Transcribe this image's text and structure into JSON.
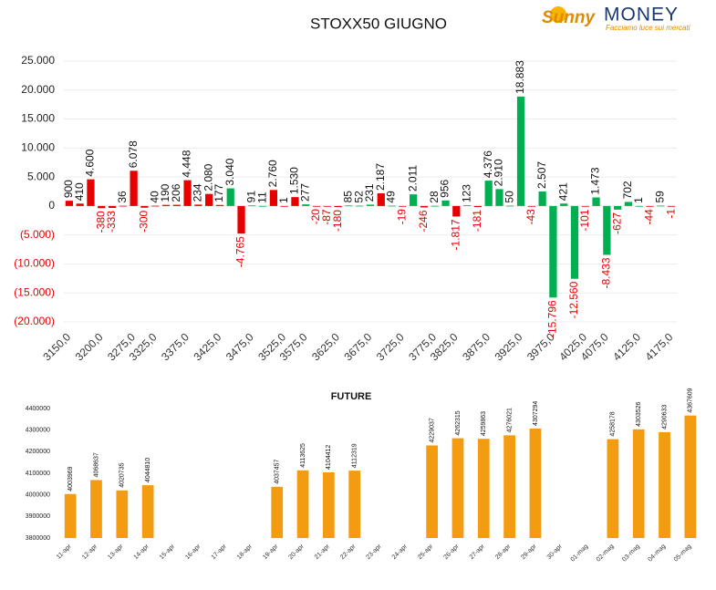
{
  "logo": {
    "brand": "Sunny",
    "name": "MONEY",
    "tagline": "Facciamo luce sui mercati"
  },
  "chart_data": [
    {
      "type": "bar",
      "title": "STOXX50 GIUGNO",
      "categories": [
        "3150,0",
        null,
        null,
        "3200,0",
        null,
        null,
        "3275,0",
        null,
        "3325,0",
        null,
        null,
        "3375,0",
        null,
        null,
        "3425,0",
        null,
        null,
        "3475,0",
        null,
        null,
        "3525,0",
        null,
        "3575,0",
        null,
        null,
        "3625,0",
        null,
        null,
        "3675,0",
        null,
        null,
        "3725,0",
        null,
        null,
        "3775,0",
        null,
        "3825,0",
        null,
        null,
        "3875,0",
        null,
        null,
        "3925,0",
        null,
        null,
        "3975,0",
        null,
        null,
        "4025,0",
        null,
        "4075,0",
        null,
        null,
        "4125,0",
        null,
        null,
        "4175,0"
      ],
      "values": [
        900,
        410,
        4600,
        -380,
        -333,
        36,
        6078,
        -300,
        40,
        190,
        206,
        4448,
        234,
        2080,
        177,
        3040,
        -4765,
        91,
        11,
        2760,
        1,
        1530,
        277,
        -20,
        -87,
        -180,
        85,
        52,
        231,
        2187,
        49,
        -19,
        2011,
        -246,
        28,
        956,
        -1817,
        123,
        -181,
        4376,
        2910,
        50,
        18883,
        -43,
        2507,
        -15796,
        421,
        -12560,
        -101,
        1473,
        -8433,
        -627,
        702,
        1,
        -44,
        59,
        -1
      ],
      "value_labels": [
        "900",
        "410",
        "4.600",
        "-380",
        "-333",
        "36",
        "6.078",
        "-300",
        "40",
        "190",
        "206",
        "4.448",
        "234",
        "2.080",
        "177",
        "3.040",
        "-4.765",
        "91",
        "11",
        "2.760",
        "1",
        "1.530",
        "277",
        "-20",
        "-87",
        "-180",
        "85",
        "52",
        "231",
        "2.187",
        "49",
        "-19",
        "2.011",
        "-246",
        "28",
        "956",
        "-1.817",
        "123",
        "-181",
        "4.376",
        "2.910",
        "50",
        "18.883",
        "-43",
        "2.507",
        "-15.796",
        "421",
        "-12.560",
        "-101",
        "1.473",
        "-8.433",
        "-627",
        "702",
        "1",
        "-44",
        "59",
        "-1"
      ],
      "colors": [
        "#e60000",
        "#e60000",
        "#e60000",
        "#e60000",
        "#e60000",
        "#e60000",
        "#e60000",
        "#e60000",
        "#e60000",
        "#e60000",
        "#e60000",
        "#e60000",
        "#e60000",
        "#e60000",
        "#e60000",
        "#00b050",
        "#e60000",
        "#00b050",
        "#00b050",
        "#e60000",
        "#e60000",
        "#e60000",
        "#00b050",
        "#e60000",
        "#e60000",
        "#e60000",
        "#00b050",
        "#00b050",
        "#00b050",
        "#e60000",
        "#00b050",
        "#e60000",
        "#00b050",
        "#e60000",
        "#00b050",
        "#00b050",
        "#e60000",
        "#00b050",
        "#e60000",
        "#00b050",
        "#00b050",
        "#00b050",
        "#00b050",
        "#e60000",
        "#00b050",
        "#00b050",
        "#00b050",
        "#00b050",
        "#e60000",
        "#00b050",
        "#00b050",
        "#00b050",
        "#00b050",
        "#00b050",
        "#e60000",
        "#00b050",
        "#e60000"
      ],
      "ylim": [
        -20000,
        25000
      ],
      "yticks": [
        {
          "value": -20000,
          "label": "(20.000)"
        },
        {
          "value": -15000,
          "label": "(15.000)"
        },
        {
          "value": -10000,
          "label": "(10.000)"
        },
        {
          "value": -5000,
          "label": "(5.000)"
        },
        0,
        {
          "value": 5000,
          "label": "5.000"
        },
        {
          "value": 10000,
          "label": "10.000"
        },
        {
          "value": 15000,
          "label": "15.000"
        },
        {
          "value": 20000,
          "label": "20.000"
        },
        {
          "value": 25000,
          "label": "25.000"
        }
      ],
      "grid": true
    },
    {
      "type": "bar",
      "title": "FUTURE",
      "categories": [
        "11-apr",
        "12-apr",
        "13-apr",
        "14-apr",
        "15-apr",
        "16-apr",
        "17-apr",
        "18-apr",
        "19-apr",
        "20-apr",
        "21-apr",
        "22-apr",
        "23-apr",
        "24-apr",
        "25-apr",
        "26-apr",
        "27-apr",
        "28-apr",
        "29-apr",
        "30-apr",
        "01-mag",
        "02-mag",
        "03-mag",
        "04-mag",
        "05-mag"
      ],
      "values": [
        4003969,
        4068637,
        4020735,
        4044810,
        null,
        null,
        null,
        null,
        4037457,
        4113625,
        4104412,
        4112319,
        null,
        null,
        4229037,
        4262315,
        4259863,
        4276021,
        4307294,
        null,
        null,
        4258178,
        4303526,
        4290633,
        4367609
      ],
      "color": "#f39c12",
      "ylim": [
        3800000,
        4400000
      ],
      "yticks": [
        3800000,
        3900000,
        4000000,
        4100000,
        4200000,
        4300000,
        4400000
      ],
      "grid": false
    }
  ]
}
